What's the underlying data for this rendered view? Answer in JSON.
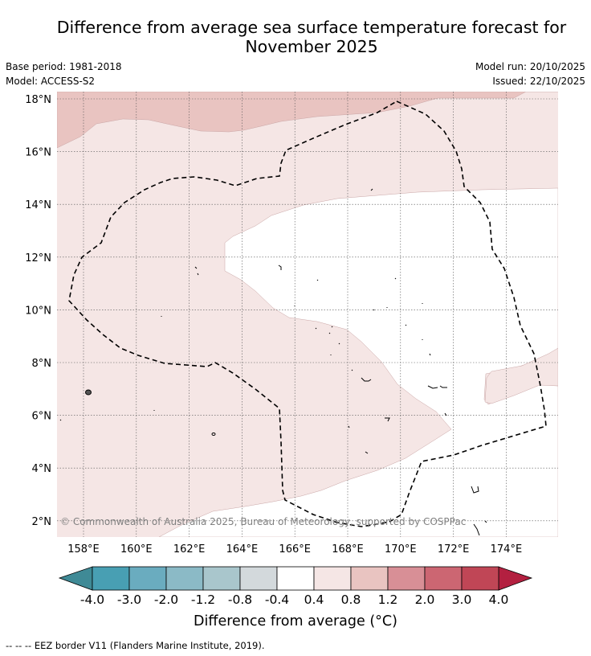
{
  "title_line1": "Difference from average sea surface temperature forecast for",
  "title_line2": "November 2025",
  "base_period": "Base period: 1981-2018",
  "model": "Model: ACCESS-S2",
  "model_run": "Model run: 20/10/2025",
  "issued": "Issued: 22/10/2025",
  "copyright": "© Commonwealth of Australia 2025, Bureau of Meteorology, supported by COSPPac",
  "colorbar_title": "Difference from average (°C)",
  "legend_note": "-- -- -- EEZ border V11 (Flanders Marine Institute, 2019).",
  "map_data": {
    "lat_labels": [
      "18°N",
      "16°N",
      "14°N",
      "12°N",
      "10°N",
      "8°N",
      "6°N",
      "4°N",
      "2°N"
    ],
    "lon_labels": [
      "158°E",
      "160°E",
      "162°E",
      "164°E",
      "166°E",
      "168°E",
      "170°E",
      "172°E",
      "174°E"
    ],
    "colorbar": {
      "labels": [
        "-4.0",
        "-3.0",
        "-2.0",
        "-1.2",
        "-0.8",
        "-0.4",
        "0.4",
        "0.8",
        "1.2",
        "2.0",
        "3.0",
        "4.0"
      ],
      "colors": [
        "#489fb3",
        "#6aacbf",
        "#8bbac6",
        "#a9c6cc",
        "#d3d9dc",
        "#ffffff",
        "#f5e6e5",
        "#e9c4c1",
        "#d88f96",
        "#cc6672",
        "#c04656"
      ],
      "under_color": "#3f8a96",
      "over_color": "#b32040"
    },
    "region_colors": {
      "band_0_4_0_8": "#f5e6e5",
      "band_0_8_1_2": "#e9c4c1",
      "neutral": "#ffffff"
    }
  }
}
